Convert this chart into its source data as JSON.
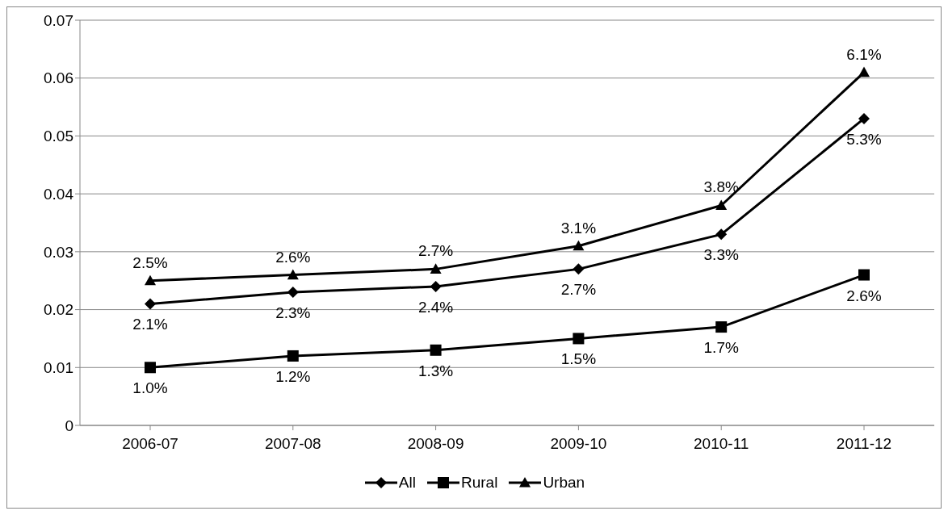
{
  "chart_data": {
    "type": "line",
    "categories": [
      "2006-07",
      "2007-08",
      "2008-09",
      "2009-10",
      "2010-11",
      "2011-12"
    ],
    "series": [
      {
        "name": "All",
        "color": "#000000",
        "marker": "diamond",
        "values": [
          0.021,
          0.023,
          0.024,
          0.027,
          0.033,
          0.053
        ],
        "value_labels": [
          "2.1%",
          "2.3%",
          "2.4%",
          "2.7%",
          "3.3%",
          "5.3%"
        ]
      },
      {
        "name": "Rural",
        "color": "#000000",
        "marker": "square",
        "values": [
          0.01,
          0.012,
          0.013,
          0.015,
          0.017,
          0.026
        ],
        "value_labels": [
          "1.0%",
          "1.2%",
          "1.3%",
          "1.5%",
          "1.7%",
          "2.6%"
        ]
      },
      {
        "name": "Urban",
        "color": "#000000",
        "marker": "triangle",
        "values": [
          0.025,
          0.026,
          0.027,
          0.031,
          0.038,
          0.061
        ],
        "value_labels": [
          "2.5%",
          "2.6%",
          "2.7%",
          "3.1%",
          "3.8%",
          "6.1%"
        ]
      }
    ],
    "ylim": [
      0,
      0.07
    ],
    "yticks": [
      0,
      0.01,
      0.02,
      0.03,
      0.04,
      0.05,
      0.06,
      0.07
    ],
    "grid": "y",
    "legend": "bottom"
  }
}
